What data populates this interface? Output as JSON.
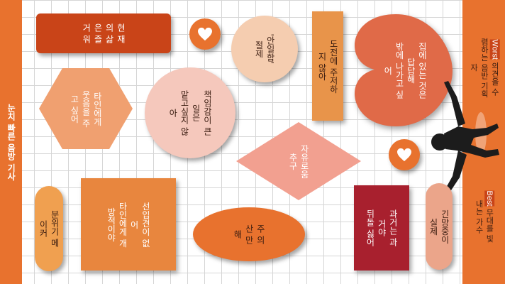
{
  "left_banner": "눈치 빠른 음방 기사",
  "right_banner": {
    "worst_label": "Worst",
    "worst_text": "의견을 수렴하는 음반 기획자",
    "best_label": "Best",
    "best_text": "무대를 빛내는 가수"
  },
  "shapes": {
    "present": "현 재 의   삶 은   즐 거 워",
    "hexagon": "타인에게\n웃음을 주고 싶어",
    "bubble": "분위기 메이커",
    "square": "선입견이 없어\n타인에게 개방적이야",
    "big_circle": "책임감이 큰 일은\n맡고싶지 않아",
    "peach_circle": "'안일함' 절제",
    "diamond": "자유로움 추구",
    "ellipse": "주 의   산 만 해",
    "challenge": "도전에 주저하지 않아",
    "heart": "집에 있는 것은 답답해\n밖에 나가고 싶어",
    "past": "과거는 과거야\n뒤돌 싫어",
    "ready": "긴망중이 실제"
  },
  "colors": {
    "orange": "#e8722e",
    "dark_orange": "#c94418",
    "salmon": "#f0a070",
    "peach": "#f5cdb0",
    "pink": "#f2a090",
    "maroon": "#a8202e",
    "heart": "#e06a48"
  },
  "icons": [
    "heart-icon",
    "heart-icon",
    "dancer-figure"
  ]
}
